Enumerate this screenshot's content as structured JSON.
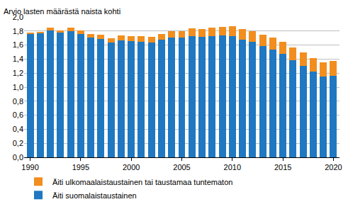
{
  "chart_data": {
    "type": "bar",
    "stacked": true,
    "grid": true,
    "legend": "bottom",
    "y_label": "Arvio lasten määrästä naista kohti",
    "x": [
      1990,
      1991,
      1992,
      1993,
      1994,
      1995,
      1996,
      1997,
      1998,
      1999,
      2000,
      2001,
      2002,
      2003,
      2004,
      2005,
      2006,
      2007,
      2008,
      2009,
      2010,
      2011,
      2012,
      2013,
      2014,
      2015,
      2016,
      2017,
      2018,
      2019,
      2020
    ],
    "series": [
      {
        "name": "Äiti suomalaistaustainen",
        "color": "#1f78c1",
        "values": [
          1.76,
          1.77,
          1.81,
          1.78,
          1.8,
          1.76,
          1.71,
          1.69,
          1.64,
          1.67,
          1.66,
          1.65,
          1.64,
          1.68,
          1.71,
          1.71,
          1.73,
          1.72,
          1.73,
          1.74,
          1.73,
          1.68,
          1.65,
          1.59,
          1.54,
          1.47,
          1.38,
          1.3,
          1.22,
          1.15,
          1.16
        ]
      },
      {
        "name": "Äiti ulkomaalaistaustainen tai taustamaa tuntematon",
        "color": "#f28e1e",
        "values": [
          0.02,
          0.02,
          0.04,
          0.03,
          0.05,
          0.05,
          0.05,
          0.06,
          0.06,
          0.07,
          0.07,
          0.08,
          0.08,
          0.08,
          0.09,
          0.09,
          0.11,
          0.11,
          0.12,
          0.12,
          0.14,
          0.15,
          0.15,
          0.16,
          0.17,
          0.18,
          0.19,
          0.19,
          0.19,
          0.2,
          0.21
        ]
      }
    ],
    "xlim": [
      1989.4,
      2020.6
    ],
    "xticks": [
      1990,
      1995,
      2000,
      2005,
      2010,
      2015,
      2020
    ],
    "ylim": [
      0,
      2
    ],
    "yticks": [
      {
        "value": 0,
        "label": "0,0"
      },
      {
        "value": 0.2,
        "label": "0,2"
      },
      {
        "value": 0.4,
        "label": "0,4"
      },
      {
        "value": 0.6,
        "label": "0,6"
      },
      {
        "value": 0.8,
        "label": "0,8"
      },
      {
        "value": 1.0,
        "label": "1,0"
      },
      {
        "value": 1.2,
        "label": "1,2"
      },
      {
        "value": 1.4,
        "label": "1,4"
      },
      {
        "value": 1.6,
        "label": "1,6"
      },
      {
        "value": 1.8,
        "label": "1,8"
      },
      {
        "value": 2.0,
        "label": "2,0"
      }
    ]
  }
}
